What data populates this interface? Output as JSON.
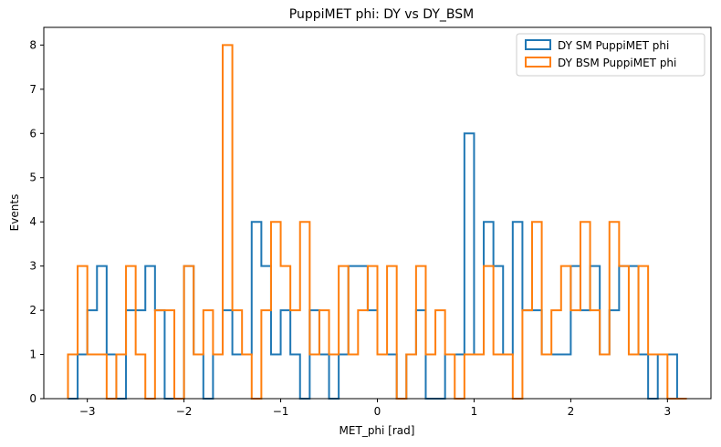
{
  "chart_data": {
    "type": "histogram",
    "title": "PuppiMET phi: DY vs DY_BSM",
    "xlabel": "MET_phi [rad]",
    "ylabel": "Events",
    "xlim": [
      -3.45,
      3.45
    ],
    "ylim": [
      0,
      8.4
    ],
    "xticks": [
      -3,
      -2,
      -1,
      0,
      1,
      2,
      3
    ],
    "xtick_labels": [
      "−3",
      "−2",
      "−1",
      "0",
      "1",
      "2",
      "3"
    ],
    "yticks": [
      0,
      1,
      2,
      3,
      4,
      5,
      6,
      7,
      8
    ],
    "yticks_labels": [
      "0",
      "1",
      "2",
      "3",
      "4",
      "5",
      "6",
      "7",
      "8"
    ],
    "grid": false,
    "legend_position": "top-right",
    "bin_edges_range": [
      -3.2,
      3.2
    ],
    "bin_count": 64,
    "series": [
      {
        "name": "DY SM PuppiMET phi",
        "color": "#1f77b4",
        "values": [
          0,
          1,
          2,
          3,
          1,
          0,
          2,
          2,
          3,
          2,
          0,
          0,
          3,
          1,
          0,
          1,
          2,
          1,
          1,
          4,
          3,
          1,
          2,
          1,
          0,
          2,
          1,
          0,
          1,
          3,
          3,
          2,
          1,
          1,
          0,
          1,
          2,
          0,
          0,
          1,
          1,
          6,
          1,
          4,
          3,
          1,
          4,
          2,
          2,
          1,
          1,
          1,
          3,
          2,
          3,
          1,
          2,
          3,
          3,
          1,
          0,
          1,
          1,
          0
        ]
      },
      {
        "name": "DY BSM PuppiMET phi",
        "color": "#ff7f0e",
        "values": [
          1,
          3,
          1,
          1,
          0,
          1,
          3,
          1,
          0,
          2,
          2,
          0,
          3,
          1,
          2,
          1,
          8,
          2,
          1,
          0,
          2,
          4,
          3,
          2,
          4,
          1,
          2,
          1,
          3,
          1,
          2,
          3,
          1,
          3,
          0,
          1,
          3,
          1,
          2,
          1,
          0,
          1,
          1,
          3,
          1,
          1,
          0,
          2,
          4,
          1,
          2,
          3,
          2,
          4,
          2,
          1,
          4,
          3,
          1,
          3,
          1,
          1,
          0,
          0
        ]
      }
    ]
  }
}
